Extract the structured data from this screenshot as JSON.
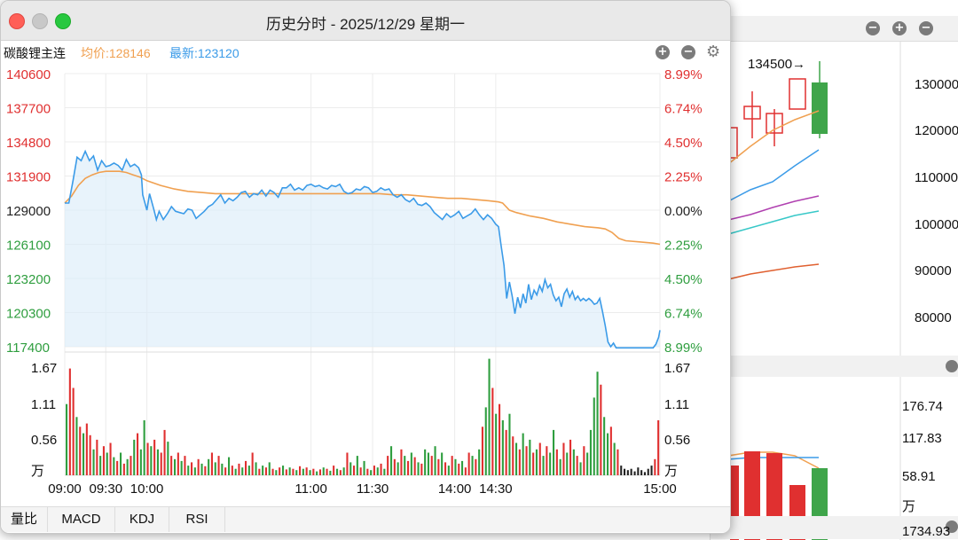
{
  "window": {
    "title": "历史分时 - 2025/12/29 星期一",
    "symbol": "碳酸锂主连",
    "avg_label": "均价:128146",
    "last_label": "最新:123120"
  },
  "tabs": [
    "量比",
    "MACD",
    "KDJ",
    "RSI"
  ],
  "colors": {
    "price": "#3b9be8",
    "avg": "#f0a050",
    "up": "#e03030",
    "down": "#2f9e3f",
    "neutral": "#222222"
  },
  "chart_data": {
    "type": "line",
    "price_axis_left": [
      "140600",
      "137700",
      "134800",
      "131900",
      "129000",
      "126100",
      "123200",
      "120300",
      "117400"
    ],
    "price_axis_right": [
      "8.99%",
      "6.74%",
      "4.50%",
      "2.25%",
      "0.00%",
      "2.25%",
      "4.50%",
      "6.74%",
      "8.99%"
    ],
    "price_ylim": [
      117400,
      140600
    ],
    "reference_price": 129000,
    "x_ticks": [
      "09:00",
      "09:30",
      "10:00",
      "11:00",
      "11:30",
      "14:00",
      "14:30",
      "15:00"
    ],
    "volume_axis": [
      "1.67",
      "1.11",
      "0.56",
      "万"
    ],
    "volume_ylim": [
      0,
      1.85
    ],
    "price_series": [
      [
        0,
        129600
      ],
      [
        3,
        129600
      ],
      [
        6,
        131500
      ],
      [
        9,
        133500
      ],
      [
        12,
        133200
      ],
      [
        15,
        134000
      ],
      [
        18,
        133200
      ],
      [
        21,
        133600
      ],
      [
        24,
        132400
      ],
      [
        27,
        133200
      ],
      [
        30,
        132700
      ],
      [
        33,
        132800
      ],
      [
        36,
        133000
      ],
      [
        39,
        132800
      ],
      [
        42,
        132400
      ],
      [
        45,
        133300
      ],
      [
        48,
        132700
      ],
      [
        51,
        132900
      ],
      [
        54,
        132600
      ],
      [
        56,
        132000
      ],
      [
        57,
        130300
      ],
      [
        60,
        129000
      ],
      [
        62,
        130400
      ],
      [
        65,
        129100
      ],
      [
        67,
        128200
      ],
      [
        69,
        128900
      ],
      [
        72,
        128200
      ],
      [
        75,
        128700
      ],
      [
        78,
        129300
      ],
      [
        81,
        128900
      ],
      [
        84,
        128800
      ],
      [
        87,
        128700
      ],
      [
        90,
        129100
      ],
      [
        93,
        129000
      ],
      [
        96,
        128300
      ],
      [
        99,
        128600
      ],
      [
        102,
        128900
      ],
      [
        105,
        129300
      ],
      [
        108,
        129500
      ],
      [
        111,
        129900
      ],
      [
        114,
        130300
      ],
      [
        117,
        129600
      ],
      [
        120,
        130000
      ],
      [
        123,
        129800
      ],
      [
        126,
        130100
      ],
      [
        129,
        130500
      ],
      [
        132,
        130600
      ],
      [
        135,
        130100
      ],
      [
        138,
        130400
      ],
      [
        141,
        130300
      ],
      [
        144,
        130700
      ],
      [
        147,
        130200
      ],
      [
        150,
        130700
      ],
      [
        153,
        130500
      ],
      [
        156,
        130100
      ],
      [
        159,
        130900
      ],
      [
        162,
        130900
      ],
      [
        165,
        131200
      ],
      [
        168,
        130700
      ],
      [
        171,
        130900
      ],
      [
        174,
        130700
      ],
      [
        177,
        131100
      ],
      [
        180,
        131200
      ],
      [
        183,
        131000
      ],
      [
        186,
        131100
      ],
      [
        189,
        130900
      ],
      [
        192,
        130800
      ],
      [
        195,
        131100
      ],
      [
        198,
        131000
      ],
      [
        201,
        131200
      ],
      [
        204,
        130600
      ],
      [
        207,
        130400
      ],
      [
        210,
        130500
      ],
      [
        213,
        130800
      ],
      [
        216,
        130700
      ],
      [
        219,
        131000
      ],
      [
        222,
        130900
      ],
      [
        225,
        130500
      ],
      [
        228,
        130600
      ],
      [
        231,
        130900
      ],
      [
        234,
        130700
      ],
      [
        237,
        130800
      ],
      [
        240,
        130300
      ],
      [
        243,
        130100
      ],
      [
        246,
        130300
      ],
      [
        249,
        129900
      ],
      [
        252,
        129700
      ],
      [
        255,
        130000
      ],
      [
        258,
        129500
      ],
      [
        261,
        129400
      ],
      [
        264,
        129600
      ],
      [
        267,
        129300
      ],
      [
        270,
        128800
      ],
      [
        273,
        128500
      ],
      [
        276,
        128200
      ],
      [
        279,
        128700
      ],
      [
        282,
        128400
      ],
      [
        285,
        128600
      ],
      [
        288,
        128900
      ],
      [
        291,
        128300
      ],
      [
        294,
        128500
      ],
      [
        297,
        128700
      ],
      [
        300,
        129100
      ],
      [
        303,
        128600
      ],
      [
        306,
        128200
      ],
      [
        309,
        128600
      ],
      [
        312,
        128300
      ],
      [
        315,
        127800
      ],
      [
        317,
        127600
      ],
      [
        319,
        125900
      ],
      [
        321,
        124300
      ],
      [
        323,
        121500
      ],
      [
        325,
        122900
      ],
      [
        327,
        121700
      ],
      [
        329,
        120200
      ],
      [
        331,
        121600
      ],
      [
        333,
        120700
      ],
      [
        335,
        121900
      ],
      [
        337,
        121100
      ],
      [
        339,
        122700
      ],
      [
        341,
        121400
      ],
      [
        343,
        122200
      ],
      [
        345,
        121800
      ],
      [
        347,
        122600
      ],
      [
        349,
        122100
      ],
      [
        351,
        123100
      ],
      [
        353,
        122400
      ],
      [
        355,
        122700
      ],
      [
        357,
        121800
      ],
      [
        359,
        121300
      ],
      [
        361,
        121600
      ],
      [
        363,
        120800
      ],
      [
        365,
        121900
      ],
      [
        367,
        122300
      ],
      [
        369,
        121600
      ],
      [
        371,
        122100
      ],
      [
        373,
        121400
      ],
      [
        375,
        121700
      ],
      [
        377,
        121300
      ],
      [
        379,
        121500
      ],
      [
        381,
        121300
      ],
      [
        383,
        121500
      ],
      [
        385,
        121300
      ],
      [
        387,
        121000
      ],
      [
        389,
        121100
      ],
      [
        391,
        121500
      ],
      [
        393,
        120400
      ],
      [
        395,
        119200
      ],
      [
        397,
        117800
      ],
      [
        399,
        117400
      ],
      [
        401,
        117700
      ],
      [
        403,
        117300
      ],
      [
        405,
        117300
      ],
      [
        410,
        117300
      ],
      [
        415,
        117300
      ],
      [
        420,
        117300
      ],
      [
        425,
        117300
      ],
      [
        430,
        117300
      ],
      [
        432,
        117600
      ],
      [
        434,
        118200
      ],
      [
        435,
        118800
      ]
    ],
    "avg_series": [
      [
        0,
        129600
      ],
      [
        5,
        130200
      ],
      [
        10,
        131100
      ],
      [
        15,
        131700
      ],
      [
        20,
        132000
      ],
      [
        25,
        132200
      ],
      [
        30,
        132300
      ],
      [
        35,
        132300
      ],
      [
        40,
        132300
      ],
      [
        45,
        132200
      ],
      [
        50,
        132000
      ],
      [
        55,
        131800
      ],
      [
        60,
        131500
      ],
      [
        70,
        131100
      ],
      [
        80,
        130800
      ],
      [
        90,
        130600
      ],
      [
        100,
        130500
      ],
      [
        110,
        130400
      ],
      [
        120,
        130400
      ],
      [
        130,
        130400
      ],
      [
        140,
        130400
      ],
      [
        150,
        130400
      ],
      [
        160,
        130400
      ],
      [
        170,
        130400
      ],
      [
        180,
        130400
      ],
      [
        190,
        130400
      ],
      [
        200,
        130400
      ],
      [
        210,
        130400
      ],
      [
        220,
        130400
      ],
      [
        230,
        130400
      ],
      [
        240,
        130300
      ],
      [
        250,
        130300
      ],
      [
        260,
        130200
      ],
      [
        270,
        130100
      ],
      [
        280,
        130000
      ],
      [
        290,
        130000
      ],
      [
        300,
        129900
      ],
      [
        310,
        129800
      ],
      [
        317,
        129700
      ],
      [
        320,
        129600
      ],
      [
        325,
        129000
      ],
      [
        330,
        128800
      ],
      [
        340,
        128500
      ],
      [
        350,
        128300
      ],
      [
        360,
        128000
      ],
      [
        370,
        127800
      ],
      [
        380,
        127600
      ],
      [
        390,
        127500
      ],
      [
        395,
        127400
      ],
      [
        400,
        127100
      ],
      [
        405,
        126600
      ],
      [
        410,
        126400
      ],
      [
        420,
        126300
      ],
      [
        430,
        126200
      ],
      [
        435,
        126100
      ]
    ],
    "volume_bars": [
      [
        1.1,
        "down"
      ],
      [
        1.65,
        "up"
      ],
      [
        1.35,
        "up"
      ],
      [
        0.9,
        "down"
      ],
      [
        0.75,
        "up"
      ],
      [
        0.65,
        "down"
      ],
      [
        0.8,
        "up"
      ],
      [
        0.62,
        "up"
      ],
      [
        0.4,
        "down"
      ],
      [
        0.55,
        "up"
      ],
      [
        0.3,
        "down"
      ],
      [
        0.45,
        "up"
      ],
      [
        0.35,
        "down"
      ],
      [
        0.5,
        "up"
      ],
      [
        0.28,
        "down"
      ],
      [
        0.22,
        "up"
      ],
      [
        0.35,
        "down"
      ],
      [
        0.18,
        "up"
      ],
      [
        0.25,
        "down"
      ],
      [
        0.3,
        "up"
      ],
      [
        0.55,
        "down"
      ],
      [
        0.65,
        "up"
      ],
      [
        0.4,
        "down"
      ],
      [
        0.85,
        "down"
      ],
      [
        0.5,
        "up"
      ],
      [
        0.45,
        "down"
      ],
      [
        0.55,
        "up"
      ],
      [
        0.4,
        "down"
      ],
      [
        0.35,
        "up"
      ],
      [
        0.7,
        "up"
      ],
      [
        0.52,
        "down"
      ],
      [
        0.3,
        "up"
      ],
      [
        0.25,
        "down"
      ],
      [
        0.35,
        "up"
      ],
      [
        0.22,
        "down"
      ],
      [
        0.3,
        "up"
      ],
      [
        0.15,
        "down"
      ],
      [
        0.2,
        "up"
      ],
      [
        0.12,
        "down"
      ],
      [
        0.25,
        "up"
      ],
      [
        0.18,
        "down"
      ],
      [
        0.14,
        "up"
      ],
      [
        0.25,
        "down"
      ],
      [
        0.35,
        "up"
      ],
      [
        0.2,
        "down"
      ],
      [
        0.3,
        "up"
      ],
      [
        0.18,
        "down"
      ],
      [
        0.12,
        "up"
      ],
      [
        0.28,
        "down"
      ],
      [
        0.15,
        "up"
      ],
      [
        0.1,
        "down"
      ],
      [
        0.18,
        "up"
      ],
      [
        0.12,
        "down"
      ],
      [
        0.22,
        "up"
      ],
      [
        0.15,
        "down"
      ],
      [
        0.35,
        "up"
      ],
      [
        0.2,
        "down"
      ],
      [
        0.1,
        "up"
      ],
      [
        0.15,
        "down"
      ],
      [
        0.12,
        "up"
      ],
      [
        0.2,
        "down"
      ],
      [
        0.1,
        "up"
      ],
      [
        0.08,
        "down"
      ],
      [
        0.12,
        "up"
      ],
      [
        0.15,
        "down"
      ],
      [
        0.09,
        "up"
      ],
      [
        0.12,
        "down"
      ],
      [
        0.1,
        "up"
      ],
      [
        0.08,
        "down"
      ],
      [
        0.14,
        "up"
      ],
      [
        0.1,
        "down"
      ],
      [
        0.12,
        "up"
      ],
      [
        0.08,
        "down"
      ],
      [
        0.1,
        "up"
      ],
      [
        0.06,
        "down"
      ],
      [
        0.09,
        "up"
      ],
      [
        0.12,
        "down"
      ],
      [
        0.1,
        "up"
      ],
      [
        0.07,
        "down"
      ],
      [
        0.15,
        "up"
      ],
      [
        0.1,
        "down"
      ],
      [
        0.08,
        "up"
      ],
      [
        0.12,
        "down"
      ],
      [
        0.35,
        "up"
      ],
      [
        0.2,
        "down"
      ],
      [
        0.15,
        "up"
      ],
      [
        0.3,
        "down"
      ],
      [
        0.12,
        "up"
      ],
      [
        0.22,
        "down"
      ],
      [
        0.1,
        "up"
      ],
      [
        0.08,
        "down"
      ],
      [
        0.15,
        "up"
      ],
      [
        0.12,
        "down"
      ],
      [
        0.18,
        "up"
      ],
      [
        0.1,
        "down"
      ],
      [
        0.3,
        "up"
      ],
      [
        0.45,
        "down"
      ],
      [
        0.25,
        "up"
      ],
      [
        0.2,
        "down"
      ],
      [
        0.4,
        "up"
      ],
      [
        0.3,
        "down"
      ],
      [
        0.22,
        "up"
      ],
      [
        0.35,
        "down"
      ],
      [
        0.28,
        "up"
      ],
      [
        0.2,
        "down"
      ],
      [
        0.18,
        "up"
      ],
      [
        0.4,
        "down"
      ],
      [
        0.35,
        "down"
      ],
      [
        0.3,
        "up"
      ],
      [
        0.45,
        "down"
      ],
      [
        0.25,
        "up"
      ],
      [
        0.35,
        "down"
      ],
      [
        0.2,
        "up"
      ],
      [
        0.15,
        "down"
      ],
      [
        0.3,
        "up"
      ],
      [
        0.25,
        "down"
      ],
      [
        0.18,
        "up"
      ],
      [
        0.22,
        "down"
      ],
      [
        0.12,
        "up"
      ],
      [
        0.35,
        "up"
      ],
      [
        0.3,
        "down"
      ],
      [
        0.25,
        "up"
      ],
      [
        0.4,
        "down"
      ],
      [
        0.75,
        "up"
      ],
      [
        1.05,
        "down"
      ],
      [
        1.8,
        "down"
      ],
      [
        1.35,
        "up"
      ],
      [
        0.95,
        "down"
      ],
      [
        1.1,
        "up"
      ],
      [
        0.85,
        "down"
      ],
      [
        0.7,
        "up"
      ],
      [
        0.95,
        "down"
      ],
      [
        0.6,
        "up"
      ],
      [
        0.5,
        "down"
      ],
      [
        0.4,
        "up"
      ],
      [
        0.65,
        "down"
      ],
      [
        0.45,
        "up"
      ],
      [
        0.55,
        "down"
      ],
      [
        0.35,
        "up"
      ],
      [
        0.4,
        "down"
      ],
      [
        0.5,
        "up"
      ],
      [
        0.3,
        "down"
      ],
      [
        0.45,
        "up"
      ],
      [
        0.35,
        "down"
      ],
      [
        0.7,
        "down"
      ],
      [
        0.4,
        "up"
      ],
      [
        0.25,
        "down"
      ],
      [
        0.5,
        "up"
      ],
      [
        0.35,
        "down"
      ],
      [
        0.55,
        "up"
      ],
      [
        0.4,
        "down"
      ],
      [
        0.3,
        "up"
      ],
      [
        0.2,
        "down"
      ],
      [
        0.45,
        "up"
      ],
      [
        0.35,
        "down"
      ],
      [
        0.7,
        "down"
      ],
      [
        1.2,
        "down"
      ],
      [
        1.6,
        "down"
      ],
      [
        1.4,
        "up"
      ],
      [
        0.9,
        "down"
      ],
      [
        0.65,
        "down"
      ],
      [
        0.75,
        "up"
      ],
      [
        0.5,
        "down"
      ],
      [
        0.4,
        "up"
      ],
      [
        0.15,
        "neutral"
      ],
      [
        0.1,
        "neutral"
      ],
      [
        0.08,
        "neutral"
      ],
      [
        0.1,
        "neutral"
      ],
      [
        0.06,
        "neutral"
      ],
      [
        0.12,
        "neutral"
      ],
      [
        0.08,
        "neutral"
      ],
      [
        0.05,
        "neutral"
      ],
      [
        0.1,
        "neutral"
      ],
      [
        0.15,
        "neutral"
      ],
      [
        0.25,
        "up"
      ],
      [
        0.85,
        "up"
      ]
    ]
  },
  "background_chart": {
    "peak_label": "134500→",
    "price_axis": [
      "130000",
      "120000",
      "110000",
      "100000",
      "90000",
      "80000"
    ],
    "volume_axis": [
      "176.74",
      "117.83",
      "58.91",
      "万"
    ],
    "bottom_value": "1734.93"
  }
}
